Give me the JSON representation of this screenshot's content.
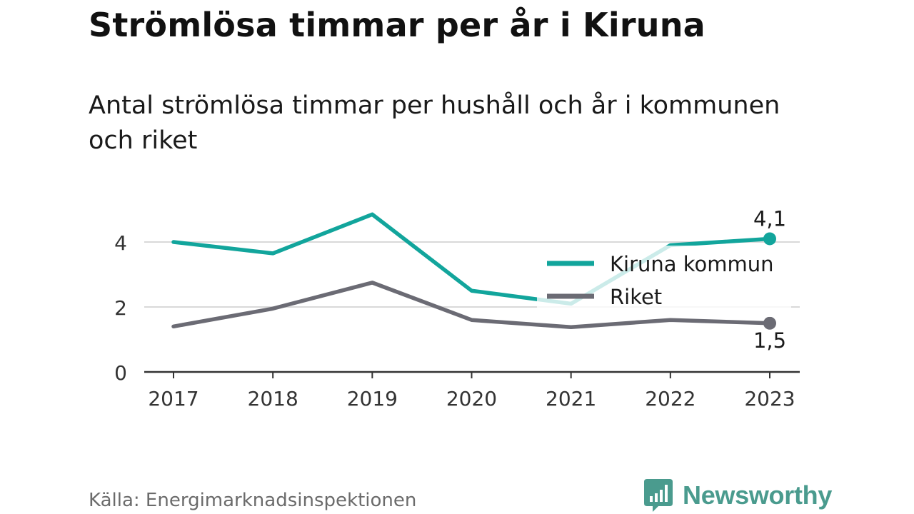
{
  "title": "Strömlösa timmar per år i Kiruna",
  "subtitle": "Antal strömlösa timmar per hushåll och år i kommunen och riket",
  "source": "Källa: Energimarknadsinspektionen",
  "brand": {
    "name": "Newsworthy",
    "color": "#4a9b8e",
    "icon": "newsworthy-logo-icon"
  },
  "chart_data": {
    "type": "line",
    "x": [
      "2017",
      "2018",
      "2019",
      "2020",
      "2021",
      "2022",
      "2023"
    ],
    "ylim": [
      0,
      5
    ],
    "yticks": [
      0,
      2,
      4
    ],
    "grid": true,
    "legend": "right",
    "series": [
      {
        "name": "Kiruna kommun",
        "color": "#12a59c",
        "values": [
          4.0,
          3.65,
          4.85,
          2.5,
          2.1,
          3.9,
          4.1
        ],
        "end_label": "4,1"
      },
      {
        "name": "Riket",
        "color": "#6b6b74",
        "values": [
          1.4,
          1.95,
          2.75,
          1.6,
          1.38,
          1.6,
          1.5
        ],
        "end_label": "1,5"
      }
    ]
  }
}
